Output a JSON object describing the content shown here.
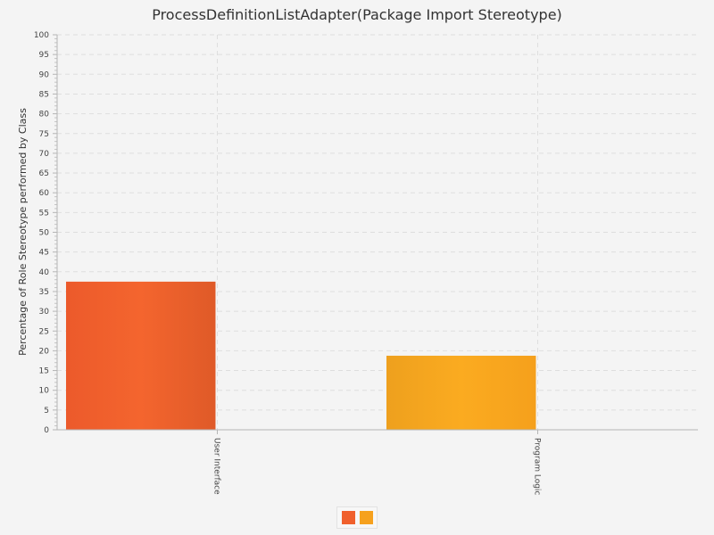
{
  "chart_data": {
    "type": "bar",
    "title": "ProcessDefinitionListAdapter(Package Import Stereotype)",
    "xlabel": "",
    "ylabel": "Percentage of Role Stereotype performed by Class",
    "categories": [
      "User Interface",
      "Program Logic"
    ],
    "values": [
      37.5,
      18.75
    ],
    "colors": [
      "#f0602d",
      "#f6a11e"
    ],
    "ylim": [
      0,
      100
    ],
    "ytick_step": 5,
    "grid": true,
    "legend": "bottom-center",
    "legend_labels": [
      "",
      ""
    ]
  }
}
